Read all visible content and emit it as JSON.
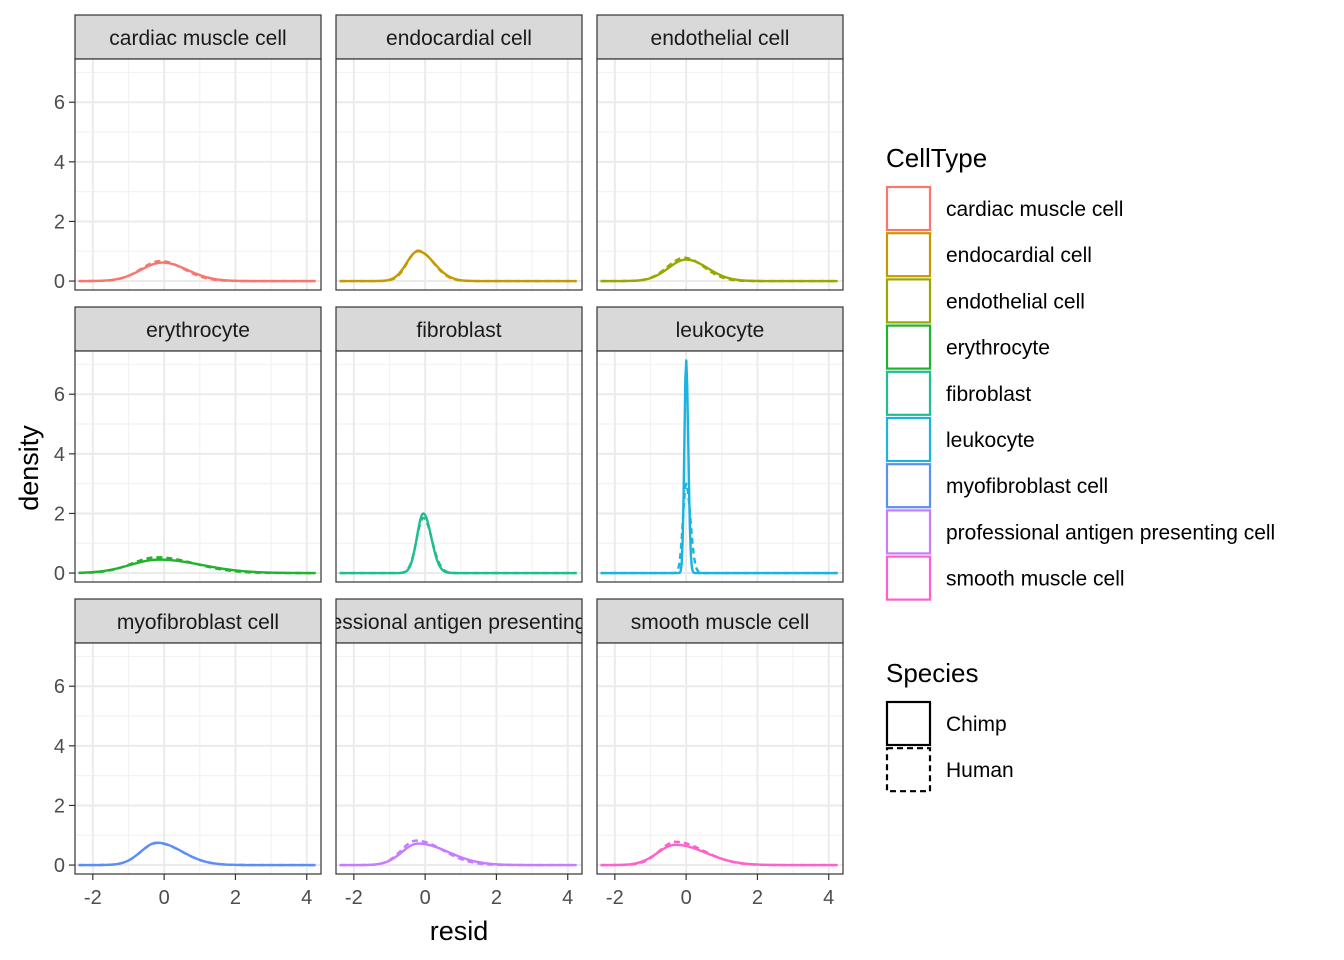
{
  "chart_data": {
    "type": "line",
    "facet_by": "CellType",
    "xlabel": "resid",
    "ylabel": "density",
    "xlim": [
      -2.5,
      4.4
    ],
    "ylim": [
      -0.3,
      7.45
    ],
    "x_ticks": [
      -2,
      0,
      2,
      4
    ],
    "y_ticks": [
      0,
      2,
      4,
      6
    ],
    "x_tick_labels": [
      "-2",
      "0",
      "2",
      "4"
    ],
    "y_tick_labels": [
      "0",
      "2",
      "4",
      "6"
    ],
    "grid": true,
    "legend_placement": "right",
    "color_legend": {
      "title": "CellType",
      "items": [
        {
          "label": "cardiac muscle cell",
          "color": "#F8766D"
        },
        {
          "label": "endocardial cell",
          "color": "#C49A00"
        },
        {
          "label": "endothelial cell",
          "color": "#99A800"
        },
        {
          "label": "erythrocyte",
          "color": "#22B22E"
        },
        {
          "label": "fibroblast",
          "color": "#1FBE8F"
        },
        {
          "label": "leukocyte",
          "color": "#1BB3E0"
        },
        {
          "label": "myofibroblast cell",
          "color": "#5C8EF7"
        },
        {
          "label": "professional antigen presenting cell",
          "color": "#C77CFF"
        },
        {
          "label": "smooth muscle cell",
          "color": "#FF61CC"
        }
      ]
    },
    "linetype_legend": {
      "title": "Species",
      "items": [
        {
          "label": "Chimp",
          "dash": "solid"
        },
        {
          "label": "Human",
          "dash": "dashed"
        }
      ]
    },
    "facets": [
      {
        "label": "cardiac muscle cell",
        "color": "#F8766D",
        "x_range": [
          -2.4,
          4.25
        ],
        "series": [
          {
            "name": "Chimp",
            "dash": "solid",
            "peak_x": -0.05,
            "peak_y": 0.62,
            "sd_left": 0.6,
            "sd_right": 0.7
          },
          {
            "name": "Human",
            "dash": "dashed",
            "peak_x": -0.1,
            "peak_y": 0.67,
            "sd_left": 0.55,
            "sd_right": 0.65
          }
        ]
      },
      {
        "label": "endocardial cell",
        "color": "#C49A00",
        "x_range": [
          -2.4,
          4.25
        ],
        "series": [
          {
            "name": "Chimp",
            "dash": "solid",
            "peak_x": -0.2,
            "peak_y": 1.0,
            "sd_left": 0.32,
            "sd_right": 0.45
          },
          {
            "name": "Human",
            "dash": "dashed",
            "peak_x": -0.2,
            "peak_y": 1.02,
            "sd_left": 0.3,
            "sd_right": 0.43
          }
        ]
      },
      {
        "label": "endothelial cell",
        "color": "#99A800",
        "x_range": [
          -2.4,
          4.25
        ],
        "series": [
          {
            "name": "Chimp",
            "dash": "solid",
            "peak_x": 0.0,
            "peak_y": 0.72,
            "sd_left": 0.5,
            "sd_right": 0.6
          },
          {
            "name": "Human",
            "dash": "dashed",
            "peak_x": -0.05,
            "peak_y": 0.78,
            "sd_left": 0.48,
            "sd_right": 0.55
          }
        ]
      },
      {
        "label": "erythrocyte",
        "color": "#22B22E",
        "x_range": [
          -2.4,
          4.25
        ],
        "series": [
          {
            "name": "Chimp",
            "dash": "solid",
            "peak_x": -0.15,
            "peak_y": 0.45,
            "sd_left": 0.8,
            "sd_right": 1.2
          },
          {
            "name": "Human",
            "dash": "dashed",
            "peak_x": -0.2,
            "peak_y": 0.53,
            "sd_left": 0.7,
            "sd_right": 1.05
          }
        ]
      },
      {
        "label": "fibroblast",
        "color": "#1FBE8F",
        "x_range": [
          -2.4,
          4.25
        ],
        "series": [
          {
            "name": "Chimp",
            "dash": "solid",
            "peak_x": -0.05,
            "peak_y": 2.0,
            "sd_left": 0.18,
            "sd_right": 0.22
          },
          {
            "name": "Human",
            "dash": "dashed",
            "peak_x": -0.05,
            "peak_y": 1.85,
            "sd_left": 0.19,
            "sd_right": 0.24
          }
        ]
      },
      {
        "label": "leukocyte",
        "color": "#1BB3E0",
        "x_range": [
          -2.4,
          4.25
        ],
        "series": [
          {
            "name": "Chimp",
            "dash": "solid",
            "peak_x": 0.0,
            "peak_y": 7.15,
            "sd_left": 0.05,
            "sd_right": 0.06
          },
          {
            "name": "Human",
            "dash": "dashed",
            "peak_x": 0.0,
            "peak_y": 3.0,
            "sd_left": 0.09,
            "sd_right": 0.12
          }
        ]
      },
      {
        "label": "myofibroblast cell",
        "color": "#5C8EF7",
        "x_range": [
          -2.4,
          4.25
        ],
        "series": [
          {
            "name": "Chimp",
            "dash": "solid",
            "peak_x": -0.2,
            "peak_y": 0.75,
            "sd_left": 0.45,
            "sd_right": 0.7
          },
          {
            "name": "Human",
            "dash": "dashed",
            "peak_x": -0.2,
            "peak_y": 0.74,
            "sd_left": 0.45,
            "sd_right": 0.7
          }
        ]
      },
      {
        "label": "professional antigen presenting cell",
        "color": "#C77CFF",
        "x_range": [
          -2.4,
          4.25
        ],
        "series": [
          {
            "name": "Chimp",
            "dash": "solid",
            "peak_x": -0.2,
            "peak_y": 0.72,
            "sd_left": 0.45,
            "sd_right": 0.85
          },
          {
            "name": "Human",
            "dash": "dashed",
            "peak_x": -0.25,
            "peak_y": 0.82,
            "sd_left": 0.42,
            "sd_right": 0.75
          }
        ]
      },
      {
        "label": "smooth muscle cell",
        "color": "#FF61CC",
        "x_range": [
          -2.4,
          4.25
        ],
        "series": [
          {
            "name": "Chimp",
            "dash": "solid",
            "peak_x": -0.3,
            "peak_y": 0.68,
            "sd_left": 0.5,
            "sd_right": 0.85
          },
          {
            "name": "Human",
            "dash": "dashed",
            "peak_x": -0.3,
            "peak_y": 0.78,
            "sd_left": 0.45,
            "sd_right": 0.8
          }
        ]
      }
    ]
  }
}
